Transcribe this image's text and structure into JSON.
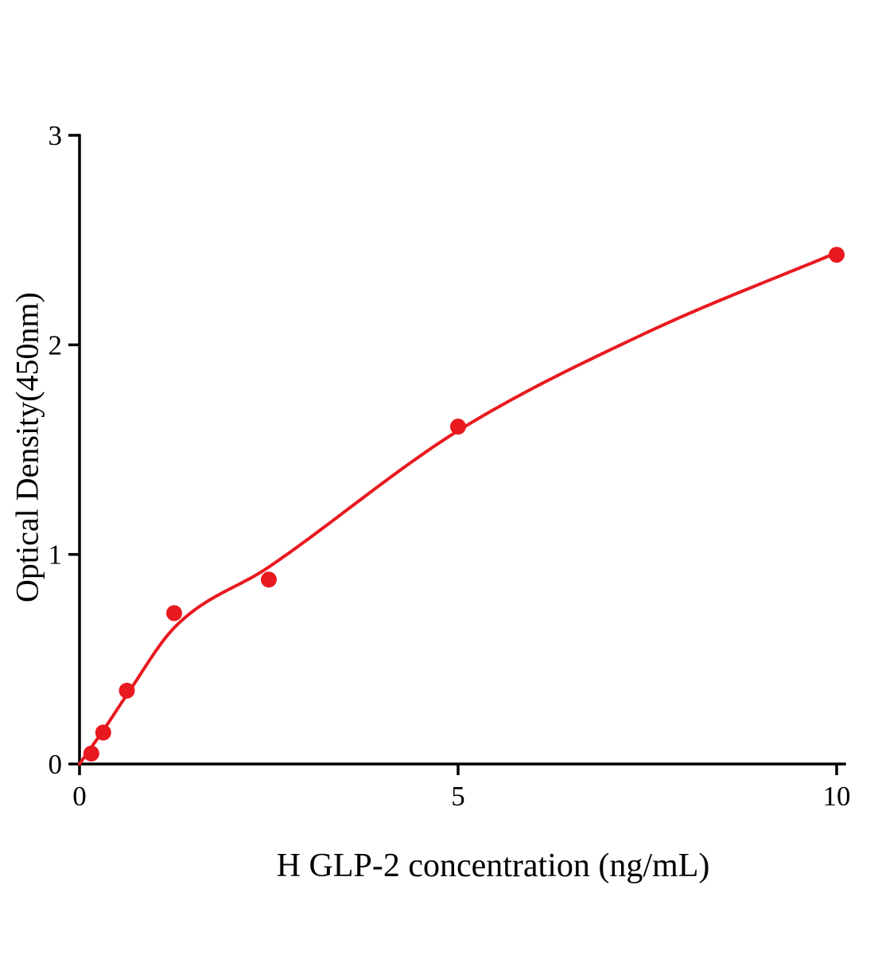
{
  "page": {
    "background_color": "#ffffff"
  },
  "chart_data": {
    "type": "scatter",
    "title": "",
    "xlabel": "H GLP-2 concentration (ng/mL)",
    "ylabel": "Optical Density(450nm)",
    "xlim": [
      0,
      10
    ],
    "ylim": [
      0,
      3
    ],
    "x_ticks": [
      0,
      5,
      10
    ],
    "y_ticks": [
      0,
      1,
      2,
      3
    ],
    "grid": false,
    "legend": "none",
    "accent_color": "#e8191f",
    "axis_color": "#000000",
    "series": [
      {
        "name": "standard-points",
        "type": "scatter",
        "color": "#e8191f",
        "points": [
          {
            "x": 0.156,
            "y": 0.05
          },
          {
            "x": 0.313,
            "y": 0.15
          },
          {
            "x": 0.625,
            "y": 0.35
          },
          {
            "x": 1.25,
            "y": 0.72
          },
          {
            "x": 2.5,
            "y": 0.88
          },
          {
            "x": 5,
            "y": 1.61
          },
          {
            "x": 10,
            "y": 2.43
          }
        ]
      },
      {
        "name": "fitted-curve",
        "type": "line",
        "color": "#e8191f",
        "points": [
          {
            "x": 0,
            "y": 0.0
          },
          {
            "x": 0.156,
            "y": 0.08
          },
          {
            "x": 0.313,
            "y": 0.16
          },
          {
            "x": 0.625,
            "y": 0.33
          },
          {
            "x": 1.25,
            "y": 0.65
          },
          {
            "x": 2.5,
            "y": 0.94
          },
          {
            "x": 5,
            "y": 1.59
          },
          {
            "x": 7.5,
            "y": 2.06
          },
          {
            "x": 10,
            "y": 2.44
          }
        ]
      }
    ]
  }
}
